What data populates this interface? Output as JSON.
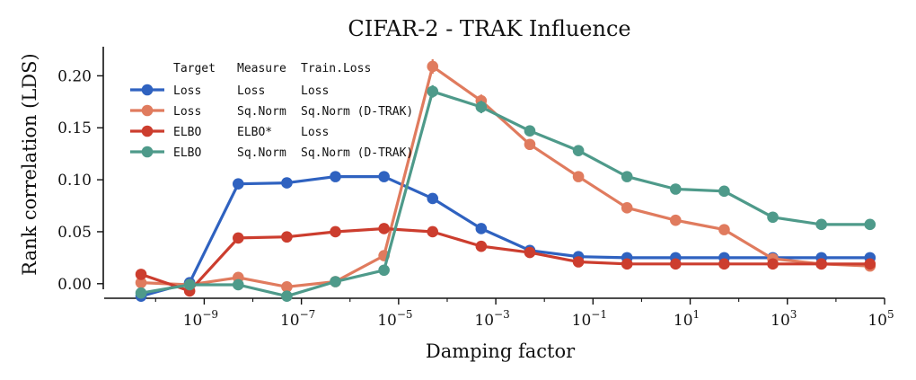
{
  "chart_data": {
    "type": "line",
    "title": "CIFAR-2 - TRAK Influence",
    "xlabel": "Damping factor",
    "ylabel": "Rank correlation (LDS)",
    "xscale": "log",
    "xlim_log10": [
      -10.8,
      5.0
    ],
    "ylim": [
      -0.014,
      0.228
    ],
    "x_log10": [
      -10.3,
      -9.3,
      -8.3,
      -7.3,
      -6.3,
      -5.3,
      -4.3,
      -3.3,
      -2.3,
      -1.3,
      -0.3,
      0.7,
      1.7,
      2.7,
      3.7,
      4.7
    ],
    "x_ticks": [
      {
        "base": "10",
        "exp": "−9",
        "log10": -9
      },
      {
        "base": "10",
        "exp": "−7",
        "log10": -7
      },
      {
        "base": "10",
        "exp": "−5",
        "log10": -5
      },
      {
        "base": "10",
        "exp": "−3",
        "log10": -3
      },
      {
        "base": "10",
        "exp": "−1",
        "log10": -1
      },
      {
        "base": "10",
        "exp": "1",
        "log10": 1
      },
      {
        "base": "10",
        "exp": "3",
        "log10": 3
      },
      {
        "base": "10",
        "exp": "5",
        "log10": 5
      }
    ],
    "y_ticks": [
      {
        "label": "0.00",
        "value": 0.0
      },
      {
        "label": "0.05",
        "value": 0.05
      },
      {
        "label": "0.10",
        "value": 0.1
      },
      {
        "label": "0.15",
        "value": 0.15
      },
      {
        "label": "0.20",
        "value": 0.2
      }
    ],
    "legend": {
      "position": "upper-left",
      "header": [
        "Target",
        "Measure",
        "Train.Loss"
      ]
    },
    "series": [
      {
        "name": "Loss / Loss / Loss",
        "columns": [
          "Loss",
          "Loss",
          "Loss"
        ],
        "color": "#2f62c0",
        "values": [
          -0.012,
          0.001,
          0.096,
          0.097,
          0.103,
          0.103,
          0.082,
          0.053,
          0.032,
          0.026,
          0.025,
          0.025,
          0.025,
          0.025,
          0.025,
          0.025
        ],
        "errors": [
          0.004,
          0.003,
          0.005,
          0.005,
          0.005,
          0.005,
          0.005,
          0.005,
          0.004,
          0.003,
          0.003,
          0.003,
          0.003,
          0.003,
          0.003,
          0.003
        ]
      },
      {
        "name": "Loss / Sq.Norm / Sq.Norm (D-TRAK)",
        "columns": [
          "Loss",
          "Sq.Norm",
          "Sq.Norm (D-TRAK)"
        ],
        "color": "#e07b5e",
        "values": [
          0.001,
          -0.001,
          0.006,
          -0.003,
          0.002,
          0.027,
          0.209,
          0.176,
          0.134,
          0.103,
          0.073,
          0.061,
          0.052,
          0.024,
          0.019,
          0.017
        ],
        "errors": [
          0.003,
          0.003,
          0.004,
          0.004,
          0.004,
          0.005,
          0.007,
          0.006,
          0.005,
          0.005,
          0.005,
          0.004,
          0.004,
          0.004,
          0.004,
          0.004
        ]
      },
      {
        "name": "ELBO / ELBO* / Loss",
        "columns": [
          "ELBO",
          "ELBO*",
          "Loss"
        ],
        "color": "#cc3d2e",
        "values": [
          0.009,
          -0.007,
          0.044,
          0.045,
          0.05,
          0.053,
          0.05,
          0.036,
          0.03,
          0.021,
          0.019,
          0.019,
          0.019,
          0.019,
          0.019,
          0.019
        ],
        "errors": [
          0.004,
          0.003,
          0.004,
          0.004,
          0.004,
          0.004,
          0.004,
          0.004,
          0.003,
          0.003,
          0.003,
          0.003,
          0.003,
          0.003,
          0.003,
          0.003
        ]
      },
      {
        "name": "ELBO / Sq.Norm / Sq.Norm (D-TRAK)",
        "columns": [
          "ELBO",
          "Sq.Norm",
          "Sq.Norm (D-TRAK)"
        ],
        "color": "#4e9a8a",
        "values": [
          -0.009,
          -0.001,
          -0.001,
          -0.012,
          0.002,
          0.013,
          0.185,
          0.17,
          0.147,
          0.128,
          0.103,
          0.091,
          0.089,
          0.064,
          0.057,
          0.057
        ],
        "errors": [
          0.003,
          0.003,
          0.003,
          0.003,
          0.004,
          0.004,
          0.006,
          0.006,
          0.005,
          0.005,
          0.004,
          0.004,
          0.004,
          0.004,
          0.004,
          0.004
        ]
      }
    ]
  }
}
